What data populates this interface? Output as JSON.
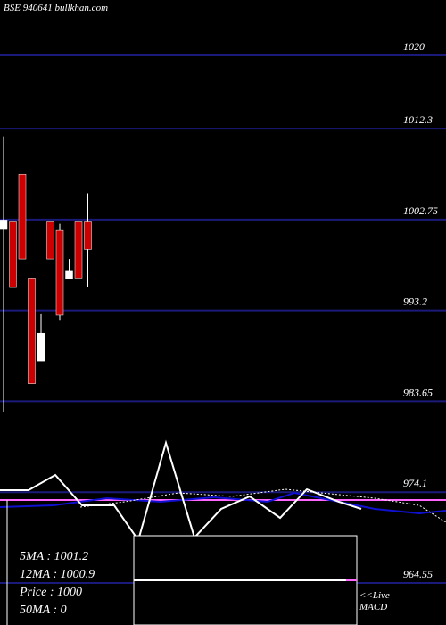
{
  "header": {
    "title": "BSE 940641 bullkhan.com"
  },
  "stats": {
    "ma5": "5MA : 1001.2",
    "ma12": "12MA : 1000.9",
    "price": "Price   : 1000",
    "ma50": "50MA : 0"
  },
  "footer": {
    "live": "<<Live",
    "macd": "MACD"
  },
  "colors": {
    "background": "#000000",
    "grid": "#1a1a7a",
    "up_candle": "#ffffff",
    "down_candle": "#cc0000",
    "ma_fast": "#ffffff",
    "ma_slow": "#1010d0",
    "signal": "#ff66ff"
  },
  "chart_data": {
    "type": "candlestick",
    "y_ticks": [
      "1020",
      "1012.3",
      "1002.75",
      "993.2",
      "983.65",
      "974.1",
      "964.55"
    ],
    "candles": [
      {
        "open": 1001.7,
        "close": 1002.7,
        "high": 1011.5,
        "low": 982.5
      },
      {
        "open": 1002.5,
        "close": 995.6,
        "high": 1002.5,
        "low": 995.6
      },
      {
        "open": 1007.5,
        "close": 998.6,
        "high": 1007.5,
        "low": 998.6
      },
      {
        "open": 996.6,
        "close": 985.5,
        "high": 996.6,
        "low": 985.5
      },
      {
        "open": 987.9,
        "close": 990.8,
        "high": 992.8,
        "low": 987.9
      },
      {
        "open": 1002.5,
        "close": 998.6,
        "high": 1002.5,
        "low": 998.6
      },
      {
        "open": 1001.6,
        "close": 992.7,
        "high": 1002.3,
        "low": 992.2
      },
      {
        "open": 996.5,
        "close": 997.4,
        "high": 998.6,
        "low": 996.5
      },
      {
        "open": 1002.5,
        "close": 996.6,
        "high": 1002.5,
        "low": 996.6
      },
      {
        "open": 1002.5,
        "close": 999.6,
        "high": 1005.5,
        "low": 995.6
      }
    ]
  }
}
